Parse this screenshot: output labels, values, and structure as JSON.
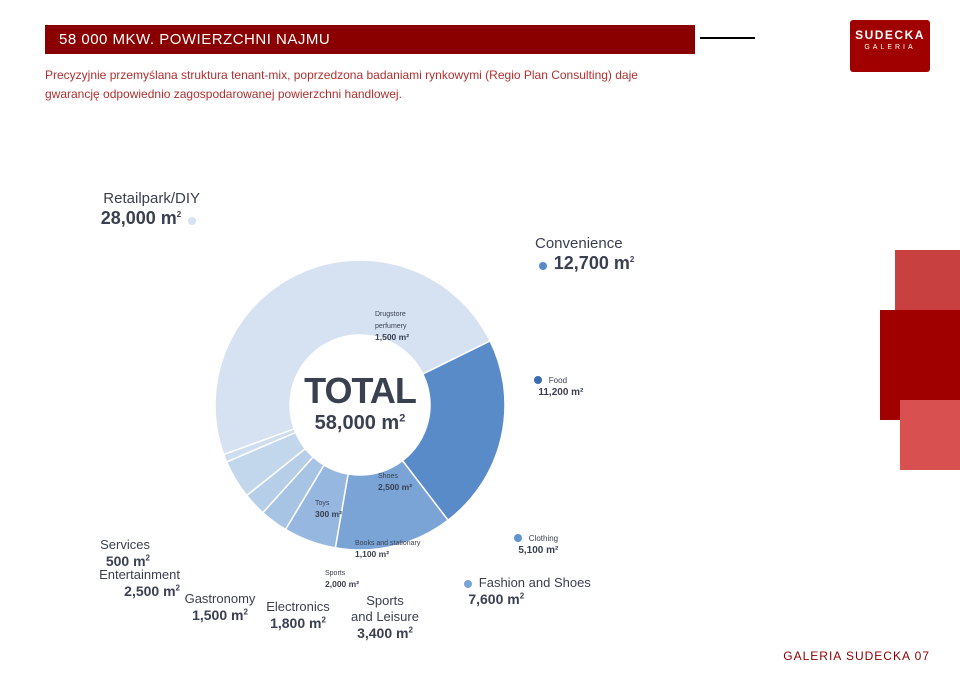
{
  "page": {
    "title": "58 000 MKW. POWIERZCHNI NAJMU",
    "subtitle": "Precyzyjnie przemyślana struktura tenant-mix, poprzedzona badaniami rynkowymi (Regio Plan Consulting) daje gwarancję odpowiednio zagospodarowanej powierzchni handlowej.",
    "brand_top": "SUDECKA",
    "brand_bot": "GALERIA",
    "footer": "GALERIA SUDECKA 07"
  },
  "chart": {
    "type": "donut-hierarchical",
    "total_label": "TOTAL",
    "total_value": "58,000 m",
    "total_sup": "2",
    "outer_ring": [
      {
        "label": "Retailpark/DIY",
        "value": "28,000 m",
        "sup": "2",
        "color": "#d6e2f2",
        "size": 28000
      },
      {
        "label": "Convenience",
        "value": "12,700 m",
        "sup": "2",
        "color": "#5a8bc9",
        "size": 12700
      },
      {
        "label": "Fashion and Shoes",
        "value": "7,600 m",
        "sup": "2",
        "color": "#7aa4d6",
        "size": 7600
      },
      {
        "label": "Sports and Leisure",
        "value": "3,400 m",
        "sup": "2",
        "color": "#96b8e0",
        "size": 3400
      },
      {
        "label": "Electronics",
        "value": "1,800 m",
        "sup": "2",
        "color": "#a8c4e4",
        "size": 1800
      },
      {
        "label": "Gastronomy",
        "value": "1,500 m",
        "sup": "2",
        "color": "#b6cee8",
        "size": 1500
      },
      {
        "label": "Entertainment",
        "value": "2,500 m",
        "sup": "2",
        "color": "#c2d6ec",
        "size": 2500
      },
      {
        "label": "Services",
        "value": "500 m",
        "sup": "2",
        "color": "#cedef0",
        "size": 500
      }
    ],
    "inner_labels": [
      {
        "label": "Drugstore perfumery",
        "value": "1,500 m²",
        "color": "#9cbb6c"
      },
      {
        "label": "Food",
        "value": "11,200 m²",
        "color": "#3a6eb0"
      },
      {
        "label": "Shoes",
        "value": "2,500 m²",
        "color": "#6096ce"
      },
      {
        "label": "Toys",
        "value": "300 m²",
        "color": "#86aed8"
      },
      {
        "label": "Books and stationary",
        "value": "1,100 m²",
        "color": "#86aed8"
      },
      {
        "label": "Sports",
        "value": "2,000 m²",
        "color": "#86aed8"
      },
      {
        "label": "Clothing",
        "value": "5,100 m²",
        "color": "#6096ce"
      }
    ],
    "divider_color": "#ffffff",
    "background_color": "#ffffff"
  }
}
